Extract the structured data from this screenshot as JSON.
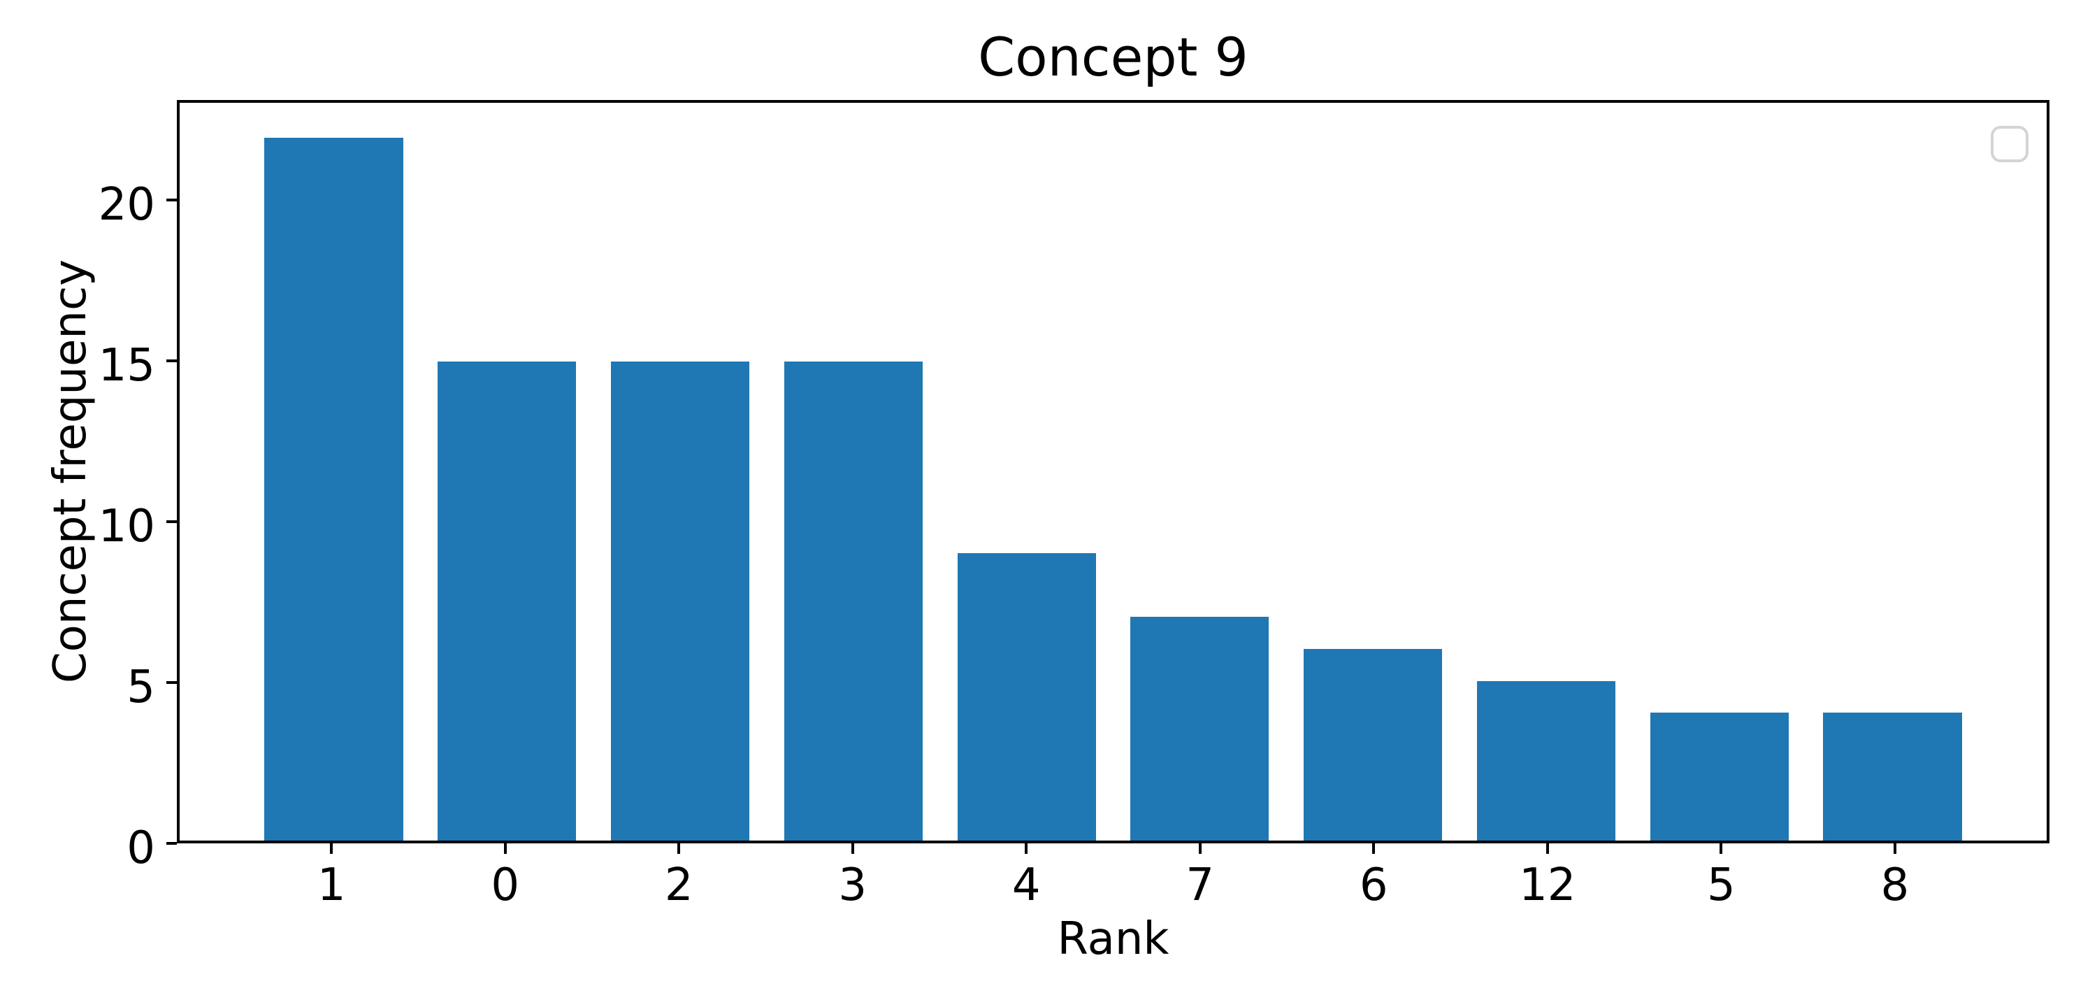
{
  "chart_data": {
    "type": "bar",
    "title": "Concept 9",
    "xlabel": "Rank",
    "ylabel": "Concept frequency",
    "categories": [
      "1",
      "0",
      "2",
      "3",
      "4",
      "7",
      "6",
      "12",
      "5",
      "8"
    ],
    "values": [
      22,
      15,
      15,
      15,
      9,
      7,
      6,
      5,
      4,
      4
    ],
    "y_ticks": [
      0,
      5,
      10,
      15,
      20
    ],
    "ylim": [
      0,
      23.1
    ],
    "xlim": [
      -0.89,
      9.89
    ],
    "bar_width": 0.8,
    "bar_color": "#1f77b4",
    "grid": false,
    "background_color": "#ffffff",
    "spine_color": "#000000",
    "legend": {
      "visible": true,
      "entries": [],
      "position": "upper right",
      "frame_color": "#d4d4d4"
    }
  }
}
